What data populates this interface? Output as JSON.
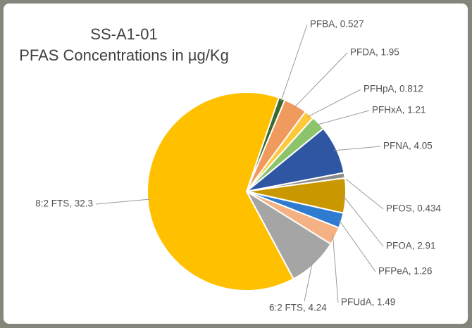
{
  "chart_data": {
    "type": "pie",
    "title": [
      "SS-A1-01",
      "PFAS Concentrations in µg/Kg"
    ],
    "categories": [
      "PFBA",
      "PFDA",
      "PFHpA",
      "PFHxA",
      "PFNA",
      "PFOS",
      "PFOA",
      "PFPeA",
      "PFUdA",
      "6:2 FTS",
      "8:2 FTS"
    ],
    "values": [
      0.527,
      1.95,
      0.812,
      1.21,
      4.05,
      0.434,
      2.91,
      1.26,
      1.49,
      4.24,
      32.3
    ],
    "value_labels": [
      "PFBA, 0.527",
      "PFDA, 1.95",
      "PFHpA, 0.812",
      "PFHxA, 1.21",
      "PFNA, 4.05",
      "PFOS, 0.434",
      "PFOA, 2.91",
      "PFPeA, 1.26",
      "PFUdA, 1.49",
      "6:2 FTS, 4.24",
      "8:2 FTS, 32.3"
    ],
    "colors": [
      "#3b6a2c",
      "#f09a5e",
      "#ffc83a",
      "#8cc46c",
      "#2f56a3",
      "#8a8a8a",
      "#c99700",
      "#2e7bcf",
      "#f4b183",
      "#a5a5a5",
      "#ffc000"
    ]
  }
}
